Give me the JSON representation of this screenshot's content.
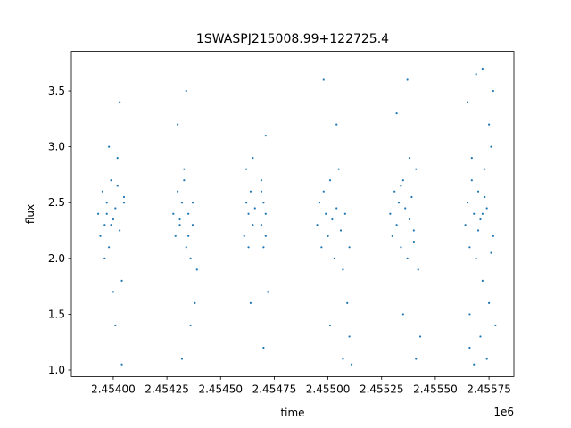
{
  "chart_data": {
    "type": "scatter",
    "title": "1SWASPJ215008.99+122725.4",
    "x_label": "time",
    "y_label": "flux",
    "x_offset_label": "1e6",
    "xlim": [
      2.453805,
      2.455866
    ],
    "ylim": [
      0.941,
      3.855
    ],
    "xticks": [
      {
        "value": 2.454,
        "label": "2.45400"
      },
      {
        "value": 2.45425,
        "label": "2.45425"
      },
      {
        "value": 2.4545,
        "label": "2.45450"
      },
      {
        "value": 2.45475,
        "label": "2.45475"
      },
      {
        "value": 2.455,
        "label": "2.45500"
      },
      {
        "value": 2.45525,
        "label": "2.45525"
      },
      {
        "value": 2.4555,
        "label": "2.45550"
      },
      {
        "value": 2.45575,
        "label": "2.45575"
      }
    ],
    "yticks": [
      {
        "value": 1,
        "label": "1.0"
      },
      1.5,
      {
        "value": 2,
        "label": "2.0"
      },
      2.5,
      {
        "value": 3,
        "label": "3.0"
      },
      3.5
    ],
    "series": [
      {
        "color": "#1f77b4",
        "x": [
          2.45393,
          2.45394,
          2.45395,
          2.45396,
          2.45397,
          2.45398,
          2.45399,
          2.454,
          2.45401,
          2.45402,
          2.45403,
          2.45404,
          2.45405,
          2.45396,
          2.45398,
          2.454,
          2.45402,
          2.45399,
          2.45401,
          2.45397,
          2.45403,
          2.45404,
          2.45405,
          2.45428,
          2.45429,
          2.4543,
          2.45431,
          2.45432,
          2.45433,
          2.45434,
          2.45435,
          2.45436,
          2.45437,
          2.45438,
          2.45439,
          2.4543,
          2.45432,
          2.45434,
          2.45436,
          2.45433,
          2.45435,
          2.45437,
          2.45431,
          2.45461,
          2.45462,
          2.45462,
          2.45463,
          2.45463,
          2.45464,
          2.45464,
          2.45465,
          2.45465,
          2.45466,
          2.45469,
          2.45469,
          2.4547,
          2.4547,
          2.45471,
          2.45471,
          2.45472,
          2.4547,
          2.45471,
          2.45469,
          2.45495,
          2.45496,
          2.45497,
          2.45498,
          2.45499,
          2.455,
          2.45501,
          2.45502,
          2.45503,
          2.45504,
          2.45505,
          2.45506,
          2.45507,
          2.45508,
          2.45509,
          2.4551,
          2.45511,
          2.45498,
          2.45501,
          2.45504,
          2.45507,
          2.4551,
          2.45529,
          2.4553,
          2.45531,
          2.45532,
          2.45533,
          2.45534,
          2.45535,
          2.45536,
          2.45537,
          2.45538,
          2.45539,
          2.4554,
          2.45541,
          2.45542,
          2.45543,
          2.45532,
          2.45535,
          2.45538,
          2.45541,
          2.45534,
          2.45537,
          2.4554,
          2.45564,
          2.45565,
          2.45566,
          2.45567,
          2.45568,
          2.45569,
          2.4557,
          2.45571,
          2.45572,
          2.45573,
          2.45574,
          2.45575,
          2.45576,
          2.45577,
          2.45578,
          2.45565,
          2.45566,
          2.45567,
          2.45568,
          2.45569,
          2.4557,
          2.45571,
          2.45572,
          2.45573,
          2.45574,
          2.45575,
          2.45576,
          2.45577,
          2.45566,
          2.45572
        ],
        "values": [
          2.4,
          2.2,
          2.6,
          2.3,
          2.5,
          2.1,
          2.7,
          2.35,
          2.45,
          2.9,
          2.25,
          1.8,
          2.55,
          2.0,
          3.0,
          1.7,
          2.65,
          2.3,
          1.4,
          2.4,
          3.4,
          1.05,
          2.5,
          2.4,
          2.2,
          2.6,
          2.3,
          2.5,
          2.8,
          2.1,
          2.4,
          2.0,
          2.3,
          1.6,
          1.9,
          3.2,
          1.1,
          3.5,
          1.4,
          2.7,
          2.2,
          2.5,
          2.35,
          2.2,
          2.5,
          2.8,
          2.1,
          2.4,
          2.6,
          1.6,
          2.3,
          2.9,
          2.45,
          2.3,
          2.6,
          2.1,
          2.5,
          2.4,
          3.1,
          1.7,
          1.2,
          2.2,
          2.7,
          2.3,
          2.5,
          2.1,
          2.6,
          2.4,
          2.2,
          2.7,
          2.35,
          2.0,
          2.45,
          2.8,
          2.25,
          1.9,
          2.4,
          1.6,
          1.3,
          1.05,
          3.6,
          1.4,
          3.2,
          1.1,
          2.1,
          2.4,
          2.2,
          2.6,
          2.3,
          2.5,
          2.1,
          2.7,
          2.45,
          2.0,
          2.35,
          2.55,
          2.25,
          2.8,
          1.9,
          1.3,
          3.3,
          1.5,
          2.9,
          1.1,
          2.65,
          3.6,
          2.15,
          2.3,
          2.5,
          2.1,
          2.7,
          2.4,
          2.0,
          2.6,
          2.35,
          1.8,
          2.8,
          2.45,
          1.6,
          3.0,
          2.2,
          1.4,
          3.4,
          1.2,
          2.9,
          1.05,
          3.65,
          2.25,
          1.3,
          3.7,
          2.55,
          1.1,
          3.2,
          2.05,
          3.5,
          1.5,
          2.4
        ]
      }
    ]
  }
}
